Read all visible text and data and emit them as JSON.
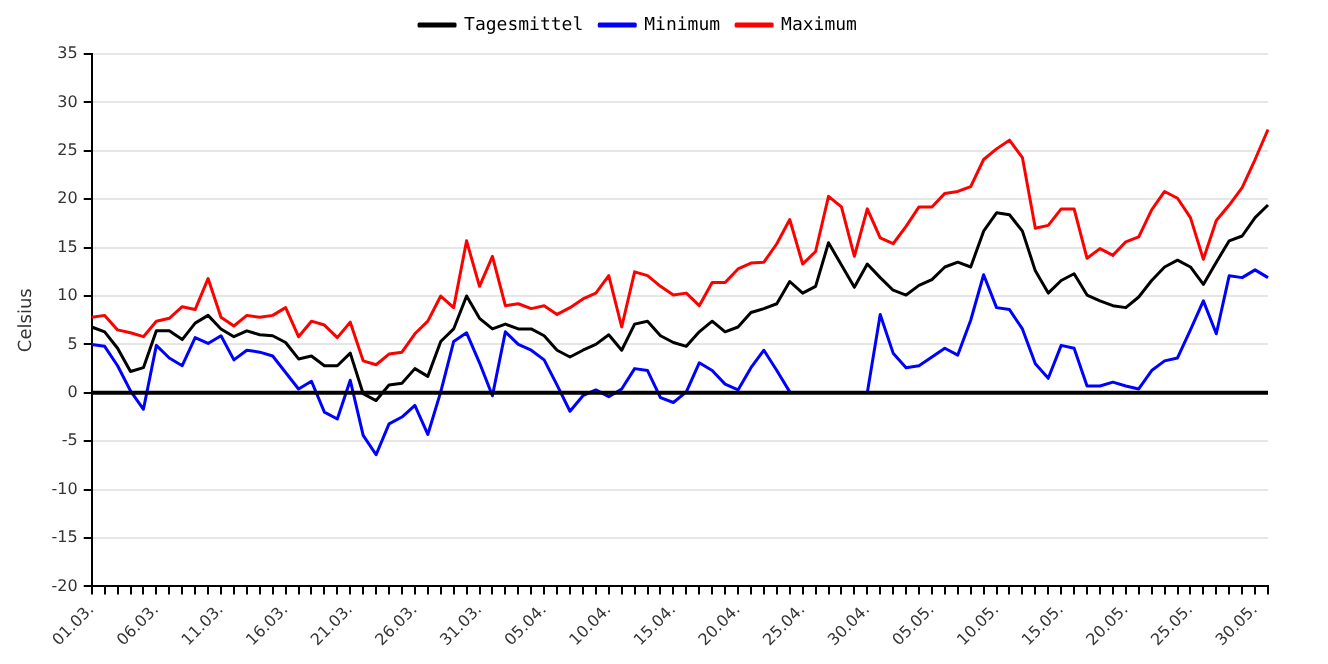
{
  "chart_data": {
    "type": "line",
    "ylabel": "Celsius",
    "legend": "top",
    "grid": "y",
    "marker": "none",
    "line_style": "solid",
    "categories": [
      "01.03.",
      null,
      null,
      null,
      null,
      "06.03.",
      null,
      null,
      null,
      null,
      "11.03.",
      null,
      null,
      null,
      null,
      "16.03.",
      null,
      null,
      null,
      null,
      "21.03.",
      null,
      null,
      null,
      null,
      "26.03.",
      null,
      null,
      null,
      null,
      "31.03.",
      null,
      null,
      null,
      null,
      "05.04.",
      null,
      null,
      null,
      null,
      "10.04.",
      null,
      null,
      null,
      null,
      "15.04.",
      null,
      null,
      null,
      null,
      "20.04.",
      null,
      null,
      null,
      null,
      "25.04.",
      null,
      null,
      null,
      null,
      "30.04.",
      null,
      null,
      null,
      null,
      "05.05.",
      null,
      null,
      null,
      null,
      "10.05.",
      null,
      null,
      null,
      null,
      "15.05.",
      null,
      null,
      null,
      null,
      "20.05.",
      null,
      null,
      null,
      null,
      "25.05.",
      null,
      null,
      null,
      null,
      "30.05.",
      null
    ],
    "ylim": [
      -20,
      35
    ],
    "yticks": [
      -20,
      -15,
      -10,
      -5,
      0,
      5,
      10,
      15,
      20,
      25,
      30,
      35
    ],
    "ref_lines": [
      {
        "axis": "y",
        "value": 0,
        "color": "#000000"
      }
    ],
    "series": [
      {
        "name": "Tagesmittel",
        "color": "#000000",
        "values": [
          6.8,
          6.3,
          4.6,
          2.2,
          2.6,
          6.4,
          6.4,
          5.5,
          7.2,
          8.0,
          6.6,
          5.8,
          6.4,
          6.0,
          5.9,
          5.2,
          3.5,
          3.8,
          2.8,
          2.8,
          4.1,
          -0.1,
          -0.8,
          0.8,
          1.0,
          2.5,
          1.7,
          5.3,
          6.6,
          10.0,
          7.7,
          6.6,
          7.1,
          6.6,
          6.6,
          5.9,
          4.4,
          3.7,
          4.4,
          5.0,
          6.0,
          4.4,
          7.1,
          7.4,
          5.9,
          5.2,
          4.8,
          6.3,
          7.4,
          6.3,
          6.8,
          8.3,
          8.7,
          9.2,
          11.5,
          10.3,
          11.0,
          15.5,
          13.2,
          10.9,
          13.3,
          11.9,
          10.6,
          10.1,
          11.1,
          11.7,
          13.0,
          13.5,
          13.0,
          16.7,
          18.6,
          18.4,
          16.7,
          12.6,
          10.3,
          11.6,
          12.3,
          10.1,
          9.5,
          9.0,
          8.8,
          9.9,
          11.6,
          13.0,
          13.7,
          13.0,
          11.2,
          13.5,
          15.7,
          16.2,
          18.1,
          19.4
        ]
      },
      {
        "name": "Minimum",
        "color": "#0000ff",
        "values": [
          5.0,
          4.8,
          2.8,
          0.2,
          -1.7,
          4.9,
          3.6,
          2.8,
          5.7,
          5.1,
          5.9,
          3.4,
          4.4,
          4.2,
          3.8,
          2.1,
          0.4,
          1.2,
          -2.0,
          -2.7,
          1.3,
          -4.4,
          -6.4,
          -3.2,
          -2.5,
          -1.3,
          -4.3,
          0.1,
          5.3,
          6.2,
          3.1,
          -0.3,
          6.3,
          5.0,
          4.4,
          3.4,
          0.8,
          -1.9,
          -0.3,
          0.3,
          -0.4,
          0.4,
          2.5,
          2.3,
          -0.5,
          -1.0,
          0.1,
          3.1,
          2.3,
          0.9,
          0.3,
          2.6,
          4.4,
          2.3,
          0.1,
          null,
          null,
          null,
          null,
          null,
          0,
          8.1,
          4.1,
          2.6,
          2.8,
          3.7,
          4.6,
          3.9,
          7.5,
          12.2,
          8.8,
          8.6,
          6.6,
          3.0,
          1.5,
          4.9,
          4.6,
          0.7,
          0.7,
          1.1,
          0.7,
          0.4,
          2.3,
          3.3,
          3.6,
          6.5,
          9.5,
          6.1,
          12.1,
          11.9,
          12.7,
          11.9
        ]
      },
      {
        "name": "Maximum",
        "color": "#ff0000",
        "values": [
          7.8,
          8.0,
          6.5,
          6.2,
          5.8,
          7.4,
          7.7,
          8.9,
          8.6,
          11.8,
          7.8,
          6.9,
          8.0,
          7.8,
          8.0,
          8.8,
          5.8,
          7.4,
          7.0,
          5.7,
          7.3,
          3.3,
          2.9,
          4.0,
          4.2,
          6.1,
          7.4,
          10.0,
          8.8,
          15.7,
          11.0,
          14.1,
          9.0,
          9.2,
          8.7,
          9.0,
          8.1,
          8.8,
          9.7,
          10.3,
          12.1,
          6.8,
          12.5,
          12.1,
          11.0,
          10.1,
          10.3,
          9.0,
          11.4,
          11.4,
          12.8,
          13.4,
          13.5,
          15.4,
          17.9,
          13.3,
          14.6,
          20.3,
          19.2,
          14.1,
          19.0,
          16.0,
          15.4,
          17.2,
          19.2,
          19.2,
          20.6,
          20.8,
          21.3,
          24.1,
          25.2,
          26.1,
          24.3,
          17.0,
          17.3,
          19.0,
          19.0,
          13.9,
          14.9,
          14.2,
          15.6,
          16.1,
          18.9,
          20.8,
          20.1,
          18.1,
          13.8,
          17.8,
          19.4,
          21.2,
          24.1,
          27.2
        ]
      }
    ]
  }
}
